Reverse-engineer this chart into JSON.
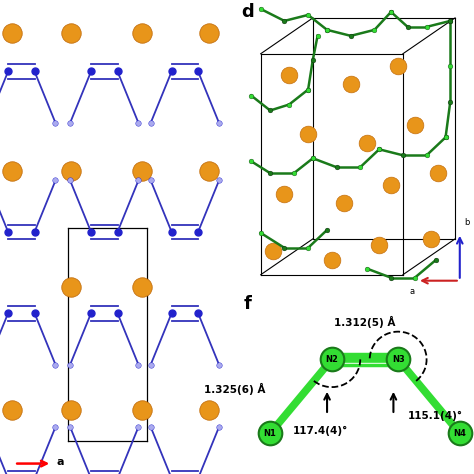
{
  "panel_a_label": "a",
  "panel_d_label": "d",
  "panel_f_label": "f",
  "mg_color": "#E8951A",
  "mg_color2": "#C47010",
  "n_dark_color": "#2222CC",
  "n_light_color": "#AAAAEE",
  "green_bright": "#33DD33",
  "green_dark": "#1A7A1A",
  "bond_color_blue": "#3333BB",
  "bond_color_green": "#22BB22",
  "f_bond_len1": "1.312(5) Å",
  "f_bond_len2": "1.325(6) Å",
  "f_angle1": "117.4(4)°",
  "f_angle2": "115.1(4)°",
  "bg_color": "white"
}
